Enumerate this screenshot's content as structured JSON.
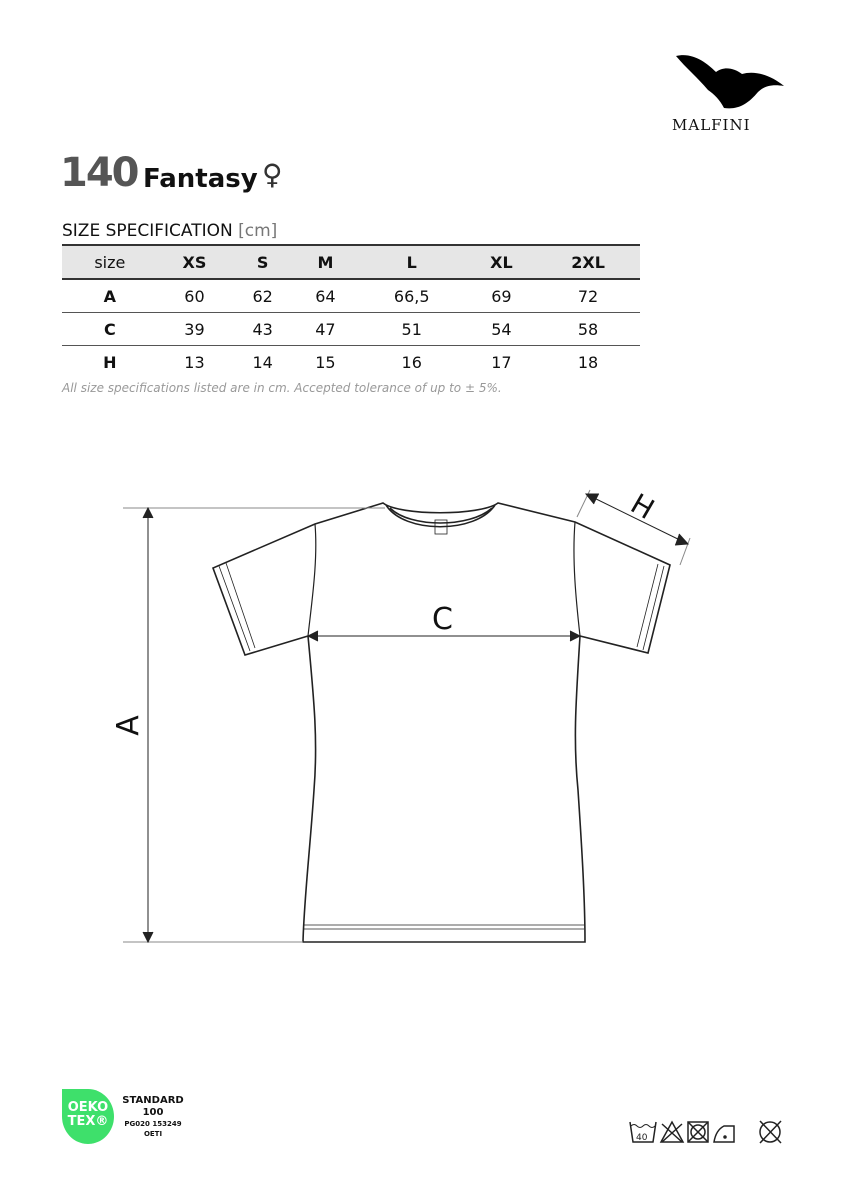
{
  "brand": {
    "name": "MALFINI",
    "logo": "eagle-icon"
  },
  "product": {
    "code": "140",
    "name": "Fantasy",
    "gender_symbol": "♀"
  },
  "spec": {
    "title": "SIZE SPECIFICATION",
    "unit": "[cm]"
  },
  "table": {
    "headers": [
      "size",
      "XS",
      "S",
      "M",
      "L",
      "XL",
      "2XL"
    ],
    "rows": [
      [
        "A",
        "60",
        "62",
        "64",
        "66,5",
        "69",
        "72"
      ],
      [
        "C",
        "39",
        "43",
        "47",
        "51",
        "54",
        "58"
      ],
      [
        "H",
        "13",
        "14",
        "15",
        "16",
        "17",
        "18"
      ]
    ]
  },
  "note": "All size specifications listed are in cm. Accepted tolerance of up to ± 5%.",
  "diagram": {
    "label_a": "A",
    "label_c": "C",
    "label_h": "H"
  },
  "certification": {
    "logo_line1": "OEKO",
    "logo_line2": "TEX®",
    "standard": "STANDARD",
    "number": "100",
    "code": "PG020 153249",
    "institute": "OETI",
    "color": "#3ee06b"
  },
  "care": {
    "wash_temp": "40",
    "icons": [
      "wash-40-icon",
      "no-bleach-icon",
      "no-tumble-dry-icon",
      "iron-low-icon",
      "no-dry-clean-icon"
    ]
  }
}
